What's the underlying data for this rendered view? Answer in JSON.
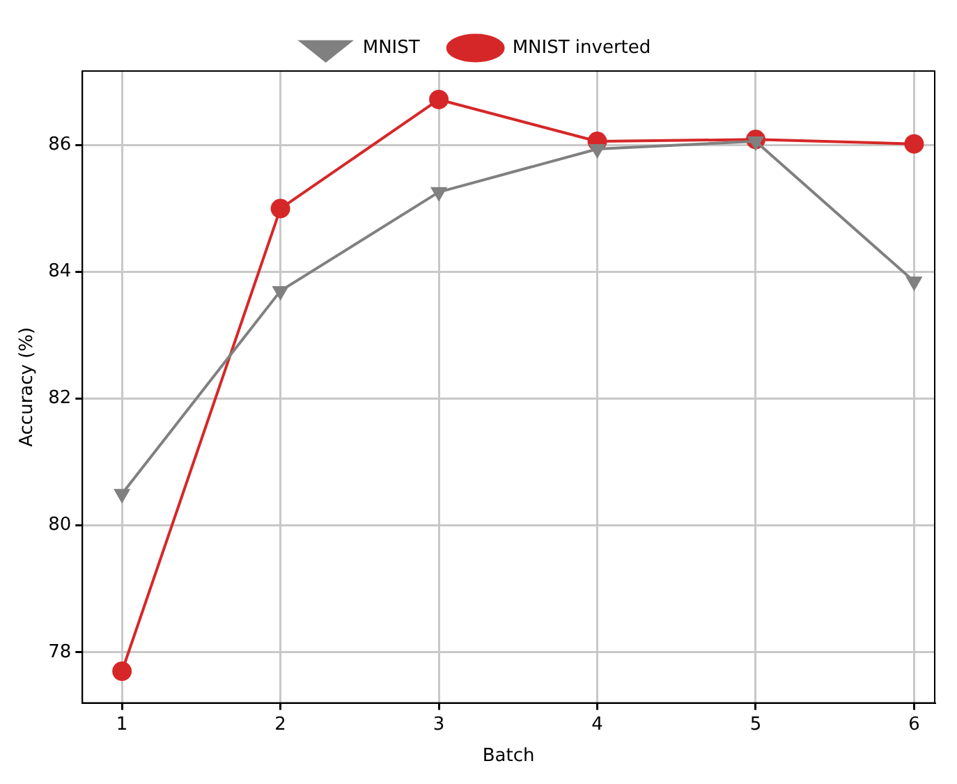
{
  "chart_data": {
    "type": "line",
    "xlabel": "Batch",
    "ylabel": "Accuracy (%)",
    "x": [
      1,
      2,
      3,
      4,
      5,
      6
    ],
    "series": [
      {
        "name": "MNIST",
        "color": "#808080",
        "marker": "triangle",
        "values": [
          80.5,
          83.7,
          85.26,
          85.94,
          86.06,
          83.85
        ]
      },
      {
        "name": "MNIST inverted",
        "color": "#d62728",
        "marker": "circle",
        "values": [
          77.7,
          85.0,
          86.72,
          86.06,
          86.09,
          86.02
        ]
      }
    ],
    "xlim": [
      0.75,
      6.13
    ],
    "xticks": [
      1,
      2,
      3,
      4,
      5,
      6
    ],
    "ylim": [
      77.2,
      87.17
    ],
    "yticks": [
      78,
      80,
      82,
      84,
      86
    ],
    "grid": true,
    "line_style": "solid",
    "legend": "top"
  }
}
